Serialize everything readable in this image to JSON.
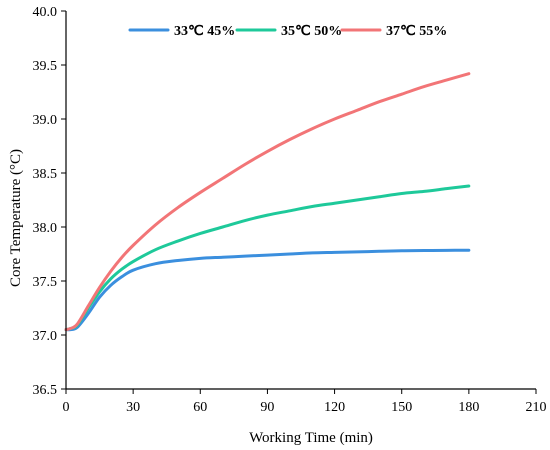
{
  "chart_data": {
    "type": "line",
    "title": "",
    "xlabel": "Working Time (min)",
    "ylabel": "Core Temperature (°C)",
    "xlim": [
      0,
      210
    ],
    "ylim": [
      36.5,
      40.0
    ],
    "x_ticks": [
      0,
      30,
      60,
      90,
      120,
      150,
      180,
      210
    ],
    "y_ticks": [
      36.5,
      37.0,
      37.5,
      38.0,
      38.5,
      39.0,
      39.5,
      40.0
    ],
    "x_tick_labels": [
      "0",
      "30",
      "60",
      "90",
      "120",
      "150",
      "180",
      "210"
    ],
    "y_tick_labels": [
      "36.5",
      "37.0",
      "37.5",
      "38.0",
      "38.5",
      "39.0",
      "39.5",
      "40.0"
    ],
    "grid": false,
    "legend_position": "top",
    "x": [
      0,
      2,
      5,
      10,
      15,
      20,
      25,
      30,
      40,
      50,
      60,
      70,
      80,
      90,
      100,
      110,
      120,
      130,
      140,
      150,
      160,
      170,
      180
    ],
    "series": [
      {
        "name": "33℃ 45%",
        "color": "#3b8fde",
        "values": [
          37.05,
          37.05,
          37.07,
          37.2,
          37.35,
          37.46,
          37.54,
          37.6,
          37.66,
          37.69,
          37.71,
          37.72,
          37.73,
          37.74,
          37.75,
          37.76,
          37.765,
          37.77,
          37.775,
          37.78,
          37.782,
          37.784,
          37.785
        ]
      },
      {
        "name": "35℃ 50%",
        "color": "#1ec99a",
        "values": [
          37.05,
          37.06,
          37.09,
          37.25,
          37.4,
          37.52,
          37.61,
          37.68,
          37.79,
          37.87,
          37.94,
          38.0,
          38.06,
          38.11,
          38.15,
          38.19,
          38.22,
          38.25,
          38.28,
          38.31,
          38.33,
          38.355,
          38.38
        ]
      },
      {
        "name": "37℃ 55%",
        "color": "#f27577",
        "values": [
          37.05,
          37.06,
          37.1,
          37.27,
          37.44,
          37.59,
          37.72,
          37.83,
          38.02,
          38.18,
          38.32,
          38.45,
          38.58,
          38.7,
          38.81,
          38.91,
          39.0,
          39.08,
          39.16,
          39.23,
          39.3,
          39.36,
          39.42
        ]
      }
    ]
  }
}
